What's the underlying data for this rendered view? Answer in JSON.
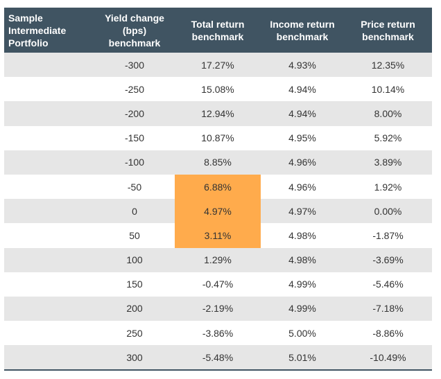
{
  "table": {
    "headers": [
      "Sample\nIntermediate\nPortfolio",
      "Yield change\n(bps)\nbenchmark",
      "Total return\nbenchmark",
      "Income return\nbenchmark",
      "Price return\nbenchmark"
    ],
    "highlight_color": "#ffab4c",
    "header_color": "#405462",
    "rows": [
      [
        "",
        "-300",
        "17.27%",
        "4.93%",
        "12.35%"
      ],
      [
        "",
        "-250",
        "15.08%",
        "4.94%",
        "10.14%"
      ],
      [
        "",
        "-200",
        "12.94%",
        "4.94%",
        "8.00%"
      ],
      [
        "",
        "-150",
        "10.87%",
        "4.95%",
        "5.92%"
      ],
      [
        "",
        "-100",
        "8.85%",
        "4.96%",
        "3.89%"
      ],
      [
        "",
        "-50",
        "6.88%",
        "4.96%",
        "1.92%"
      ],
      [
        "",
        "0",
        "4.97%",
        "4.97%",
        "0.00%"
      ],
      [
        "",
        "50",
        "3.11%",
        "4.98%",
        "-1.87%"
      ],
      [
        "",
        "100",
        "1.29%",
        "4.98%",
        "-3.69%"
      ],
      [
        "",
        "150",
        "-0.47%",
        "4.99%",
        "-5.46%"
      ],
      [
        "",
        "200",
        "-2.19%",
        "4.99%",
        "-7.18%"
      ],
      [
        "",
        "250",
        "-3.86%",
        "5.00%",
        "-8.86%"
      ],
      [
        "",
        "300",
        "-5.48%",
        "5.01%",
        "-10.49%"
      ]
    ],
    "highlighted_total_return_rows": [
      5,
      6,
      7
    ]
  }
}
